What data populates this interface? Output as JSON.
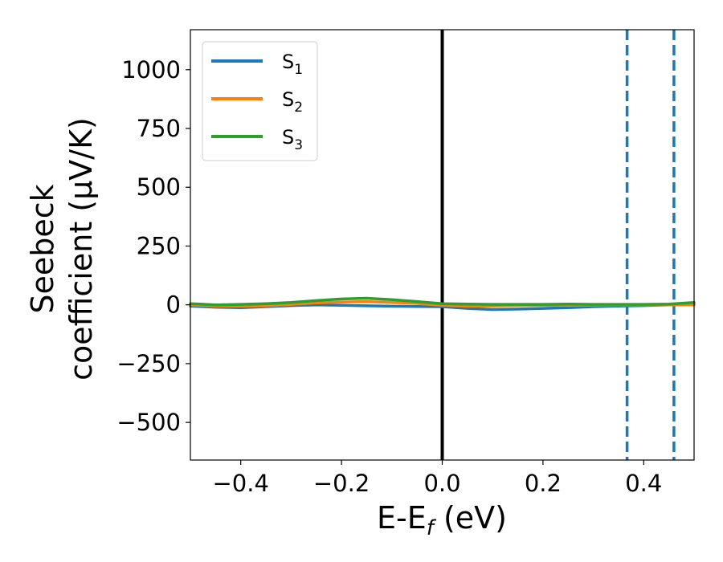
{
  "chart_data": {
    "type": "line",
    "xlabel": {
      "base": "E-E",
      "sub": "f",
      "suffix": " (eV)"
    },
    "ylabel": {
      "line1": "Seebeck",
      "line2": "coefficient  (μV/K)"
    },
    "xlim": [
      -0.5,
      0.5
    ],
    "ylim": [
      -660,
      1170
    ],
    "x_ticks": [
      -0.4,
      -0.2,
      0.0,
      0.2,
      0.4
    ],
    "x_tick_labels": [
      "−0.4",
      "−0.2",
      "0.0",
      "0.2",
      "0.4"
    ],
    "y_ticks": [
      -500,
      -250,
      0,
      250,
      500,
      750,
      1000
    ],
    "y_tick_labels": [
      "−500",
      "−250",
      "0",
      "250",
      "500",
      "750",
      "1000"
    ],
    "grid": false,
    "legend_position": "upper-left",
    "series": [
      {
        "name": "S1",
        "name_base": "S",
        "name_sub": "1",
        "color": "#1f77b4",
        "x": [
          -0.5,
          -0.45,
          -0.4,
          -0.35,
          -0.3,
          -0.25,
          -0.2,
          -0.15,
          -0.1,
          -0.05,
          0.0,
          0.05,
          0.1,
          0.15,
          0.2,
          0.25,
          0.3,
          0.35,
          0.4,
          0.45,
          0.5
        ],
        "y": [
          -5,
          -10,
          -12,
          -8,
          -3,
          0,
          -2,
          -4,
          -6,
          -7,
          -8,
          -15,
          -20,
          -18,
          -15,
          -12,
          -8,
          -5,
          -3,
          0,
          2
        ]
      },
      {
        "name": "S2",
        "name_base": "S",
        "name_sub": "2",
        "color": "#ff7f0e",
        "x": [
          -0.5,
          -0.45,
          -0.4,
          -0.35,
          -0.3,
          -0.25,
          -0.2,
          -0.15,
          -0.1,
          -0.05,
          0.0,
          0.05,
          0.1,
          0.15,
          0.2,
          0.25,
          0.3,
          0.35,
          0.4,
          0.45,
          0.5
        ],
        "y": [
          0,
          -5,
          -6,
          -4,
          2,
          8,
          12,
          14,
          10,
          6,
          -2,
          -6,
          -5,
          -3,
          -2,
          -2,
          -1,
          0,
          0,
          0,
          0
        ]
      },
      {
        "name": "S3",
        "name_base": "S",
        "name_sub": "3",
        "color": "#2ca02c",
        "x": [
          -0.5,
          -0.45,
          -0.4,
          -0.35,
          -0.3,
          -0.25,
          -0.2,
          -0.15,
          -0.1,
          -0.05,
          0.0,
          0.05,
          0.1,
          0.15,
          0.2,
          0.25,
          0.3,
          0.35,
          0.4,
          0.45,
          0.5
        ],
        "y": [
          5,
          0,
          2,
          5,
          10,
          18,
          25,
          28,
          22,
          14,
          5,
          3,
          2,
          2,
          2,
          3,
          2,
          2,
          2,
          3,
          10
        ]
      }
    ],
    "vertical_lines": [
      {
        "x": 0.0,
        "color": "#000000",
        "style": "solid"
      },
      {
        "x": 0.367,
        "color": "#1f77b4",
        "style": "dashed"
      },
      {
        "x": 0.46,
        "color": "#1f77b4",
        "style": "dashed"
      }
    ]
  }
}
